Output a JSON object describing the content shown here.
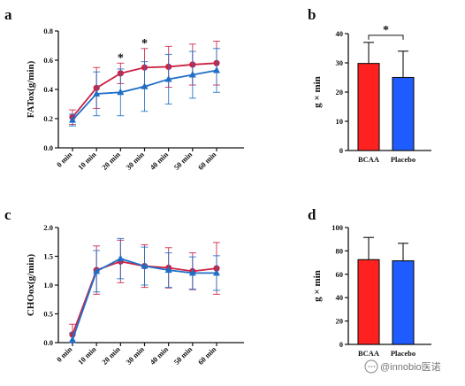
{
  "chart_data": [
    {
      "panel": "a",
      "type": "line",
      "ylabel": "FATox(g/min)",
      "ylim": [
        0,
        0.8
      ],
      "yticks": [
        "0.0",
        "0.2",
        "0.4",
        "0.6",
        "0.8"
      ],
      "x": [
        "0 min",
        "10 min",
        "20 min",
        "30 min",
        "40 min",
        "50 min",
        "60 min"
      ],
      "series": [
        {
          "color": "#cc2244",
          "marker": "circle",
          "values": [
            0.21,
            0.41,
            0.51,
            0.55,
            0.555,
            0.57,
            0.58
          ],
          "errors": [
            0.05,
            0.14,
            0.07,
            0.13,
            0.14,
            0.14,
            0.15
          ]
        },
        {
          "color": "#1f6fc7",
          "marker": "triangle",
          "values": [
            0.19,
            0.37,
            0.38,
            0.42,
            0.47,
            0.5,
            0.53
          ],
          "errors": [
            0.04,
            0.15,
            0.16,
            0.17,
            0.17,
            0.16,
            0.15
          ]
        }
      ],
      "annotations": [
        {
          "x": "20 min",
          "text": "*"
        },
        {
          "x": "30 min",
          "text": "*"
        }
      ]
    },
    {
      "panel": "b",
      "type": "bar",
      "ylabel": "g × min",
      "ylim": [
        0,
        40
      ],
      "yticks": [
        "0",
        "10",
        "20",
        "30",
        "40"
      ],
      "categories": [
        "BCAA",
        "Placebo"
      ],
      "values": [
        29.8,
        25
      ],
      "errors": [
        7.2,
        9
      ],
      "colors": [
        "#ff2020",
        "#1e5cff"
      ],
      "significance": "*"
    },
    {
      "panel": "c",
      "type": "line",
      "ylabel": "CHOox(g/min)",
      "ylim": [
        0,
        2.0
      ],
      "yticks": [
        "0.0",
        "0.5",
        "1.0",
        "1.5",
        "2.0"
      ],
      "x": [
        "0 min",
        "10 min",
        "20 min",
        "30 min",
        "40 min",
        "50 min",
        "60 min"
      ],
      "series": [
        {
          "color": "#cc2244",
          "marker": "circle",
          "values": [
            0.14,
            1.26,
            1.41,
            1.33,
            1.3,
            1.24,
            1.29
          ],
          "errors": [
            0.18,
            0.42,
            0.37,
            0.37,
            0.35,
            0.32,
            0.45
          ]
        },
        {
          "color": "#1f6fc7",
          "marker": "triangle",
          "values": [
            0.05,
            1.24,
            1.46,
            1.33,
            1.26,
            1.21,
            1.21
          ],
          "errors": [
            0.12,
            0.36,
            0.35,
            0.33,
            0.3,
            0.28,
            0.3
          ]
        }
      ],
      "annotations": []
    },
    {
      "panel": "d",
      "type": "bar",
      "ylabel": "g × min",
      "ylim": [
        0,
        100
      ],
      "yticks": [
        "0",
        "20",
        "40",
        "60",
        "80",
        "100"
      ],
      "categories": [
        "BCAA",
        "Placebo"
      ],
      "values": [
        72.5,
        71.5
      ],
      "errors": [
        19,
        15
      ],
      "colors": [
        "#ff2020",
        "#1e5cff"
      ],
      "significance": ""
    }
  ],
  "watermark": "@innobio医诺",
  "watermark_icon": "chat-bubble-icon"
}
